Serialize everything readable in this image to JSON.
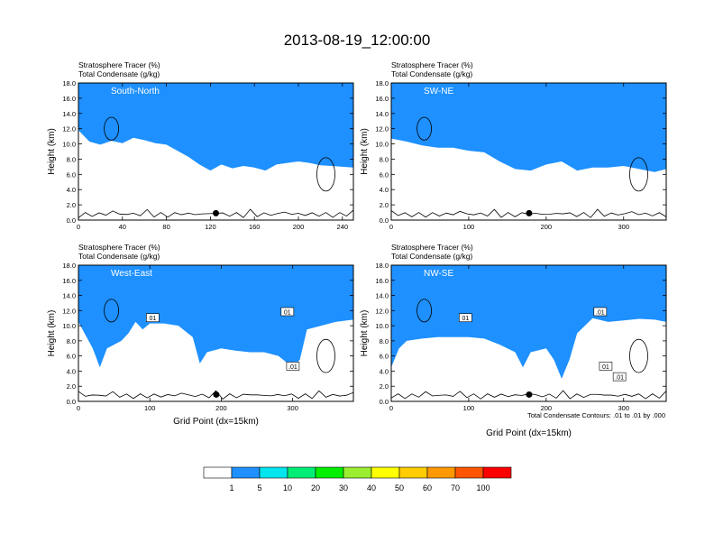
{
  "figure": {
    "title": "2013-08-19_12:00:00",
    "footnote": "Total Condensate Contours: .01 to .01 by .000"
  },
  "chart_data": [
    {
      "type": "heatmap",
      "title": "South-North",
      "variable_labels": [
        "Stratosphere Tracer   (%)",
        "Total Condensate   (g/kg)"
      ],
      "xlabel": "",
      "ylabel": "Height (km)",
      "xlim": [
        0,
        250
      ],
      "ylim": [
        0,
        18
      ],
      "xticks": [
        0,
        40,
        80,
        120,
        160,
        200,
        240
      ],
      "yticks": [
        "0.0",
        "2.0",
        "4.0",
        "6.0",
        "8.0",
        "10.0",
        "12.0",
        "14.0",
        "16.0",
        "18.0"
      ],
      "marker_x": 125,
      "tropopause_km": {
        "x": [
          0,
          10,
          20,
          30,
          40,
          50,
          60,
          70,
          80,
          90,
          100,
          110,
          120,
          130,
          140,
          150,
          160,
          170,
          180,
          190,
          200,
          210,
          220,
          230,
          240,
          250
        ],
        "h": [
          15.3,
          13.8,
          13.4,
          13.9,
          13.6,
          14.3,
          14.0,
          13.6,
          13.4,
          12.6,
          11.8,
          10.8,
          10.0,
          10.8,
          10.3,
          10.6,
          10.4,
          10.0,
          10.8,
          11.0,
          11.2,
          11.0,
          10.7,
          10.6,
          10.5,
          10.4
        ]
      },
      "contour_labels": []
    },
    {
      "type": "heatmap",
      "title": "SW-NE",
      "variable_labels": [
        "Stratosphere Tracer   (%)",
        "Total Condensate   (g/kg)"
      ],
      "xlabel": "",
      "ylabel": "Height (km)",
      "xlim": [
        0,
        355
      ],
      "ylim": [
        0,
        18
      ],
      "xticks": [
        0,
        100,
        200,
        300
      ],
      "yticks": [
        "0.0",
        "2.0",
        "4.0",
        "6.0",
        "8.0",
        "10.0",
        "12.0",
        "14.0",
        "16.0",
        "18.0"
      ],
      "marker_x": 178,
      "tropopause_km": {
        "x": [
          0,
          20,
          40,
          60,
          80,
          100,
          120,
          140,
          160,
          180,
          200,
          220,
          240,
          260,
          280,
          300,
          320,
          340,
          355
        ],
        "h": [
          14.2,
          13.8,
          13.3,
          13.0,
          13.0,
          12.6,
          12.4,
          11.2,
          10.2,
          10.0,
          10.8,
          11.2,
          10.0,
          10.4,
          10.4,
          10.6,
          10.2,
          9.8,
          10.2
        ]
      },
      "contour_labels": []
    },
    {
      "type": "heatmap",
      "title": "West-East",
      "variable_labels": [
        "Stratosphere Tracer   (%)",
        "Total Condensate   (g/kg)"
      ],
      "xlabel": "Grid Point (dx=15km)",
      "ylabel": "Height (km)",
      "xlim": [
        0,
        385
      ],
      "ylim": [
        0,
        18
      ],
      "xticks": [
        0,
        100,
        200,
        300
      ],
      "yticks": [
        "0.0",
        "2.0",
        "4.0",
        "6.0",
        "8.0",
        "10.0",
        "12.0",
        "14.0",
        "16.0",
        "18.0"
      ],
      "marker_x": 193,
      "tropopause_km": {
        "x": [
          0,
          20,
          30,
          40,
          60,
          70,
          80,
          90,
          100,
          120,
          140,
          160,
          170,
          180,
          200,
          220,
          240,
          260,
          280,
          300,
          310,
          320,
          340,
          360,
          385
        ],
        "h": [
          14.0,
          10.5,
          8.0,
          10.5,
          11.5,
          12.5,
          14.0,
          13.0,
          13.8,
          13.8,
          13.5,
          12.0,
          8.5,
          10.0,
          10.5,
          10.2,
          10.0,
          10.0,
          9.5,
          8.0,
          9.0,
          13.0,
          13.5,
          14.0,
          14.3
        ]
      },
      "contour_labels": [
        "01",
        "01",
        ".01"
      ]
    },
    {
      "type": "heatmap",
      "title": "NW-SE",
      "variable_labels": [
        "Stratosphere Tracer   (%)",
        "Total Condensate   (g/kg)"
      ],
      "xlabel": "Grid Point (dx=15km)",
      "ylabel": "Height (km)",
      "xlim": [
        0,
        355
      ],
      "ylim": [
        0,
        18
      ],
      "xticks": [
        0,
        100,
        200,
        300
      ],
      "yticks": [
        "0.0",
        "2.0",
        "4.0",
        "6.0",
        "8.0",
        "10.0",
        "12.0",
        "14.0",
        "16.0",
        "18.0"
      ],
      "marker_x": 178,
      "tropopause_km": {
        "x": [
          0,
          10,
          20,
          40,
          60,
          80,
          100,
          120,
          140,
          160,
          170,
          180,
          200,
          210,
          220,
          230,
          240,
          260,
          280,
          300,
          320,
          340,
          355
        ],
        "h": [
          8.0,
          10.5,
          11.5,
          11.8,
          12.0,
          12.0,
          12.0,
          11.8,
          11.0,
          10.0,
          8.0,
          10.0,
          10.5,
          9.0,
          6.5,
          9.0,
          12.5,
          14.5,
          14.0,
          14.2,
          14.4,
          14.3,
          14.0
        ]
      },
      "contour_labels": [
        "01",
        ".01",
        "01",
        ".01"
      ]
    }
  ],
  "colorbar": {
    "labels": [
      "1",
      "5",
      "10",
      "20",
      "30",
      "40",
      "50",
      "60",
      "70",
      "100"
    ],
    "colors": [
      "#ffffff",
      "#1e90ff",
      "#00e5ee",
      "#00ee76",
      "#00ee00",
      "#9aee30",
      "#ffff00",
      "#ffcc00",
      "#ff9900",
      "#ff5500",
      "#ff0000"
    ]
  }
}
